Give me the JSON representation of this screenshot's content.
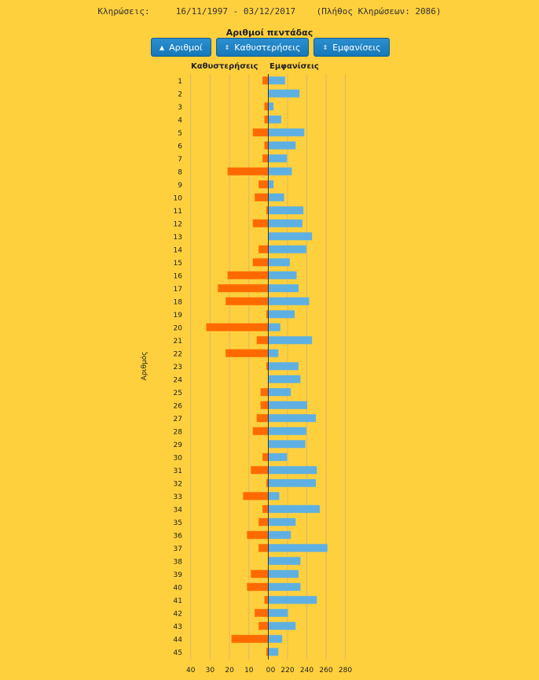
{
  "header": {
    "draws_label": "Κληρώσεις:",
    "date_range": "16/11/1997 - 03/12/2017",
    "draw_count": "(Πλήθος Κληρώσεων: 2086)"
  },
  "chart_title": "Αριθμοί πεντάδας",
  "buttons": [
    {
      "label": "Αριθμοί",
      "icon": "caret-up-icon"
    },
    {
      "label": "Καθυστερήσεις",
      "icon": "sort-icon"
    },
    {
      "label": "Εμφανίσεις",
      "icon": "sort-icon"
    }
  ],
  "colors": {
    "delays": "#FF6A00",
    "appearances": "#5EB0E2",
    "background": "#FFD03D",
    "grid": "#D8B86A"
  },
  "chart_data": {
    "type": "bar",
    "orientation": "horizontal",
    "ylabel": "Αριθμός",
    "left_axis_label": "Καθυστερήσεις",
    "right_axis_label": "Εμφανίσεις",
    "left_ticks": [
      "40",
      "30",
      "20",
      "10",
      "0"
    ],
    "right_ticks": [
      "0",
      "220",
      "240",
      "260",
      "280"
    ],
    "categories": [
      "1",
      "2",
      "3",
      "4",
      "5",
      "6",
      "7",
      "8",
      "9",
      "10",
      "11",
      "12",
      "13",
      "14",
      "15",
      "16",
      "17",
      "18",
      "19",
      "20",
      "21",
      "22",
      "23",
      "24",
      "25",
      "26",
      "27",
      "28",
      "29",
      "30",
      "31",
      "32",
      "33",
      "34",
      "35",
      "36",
      "37",
      "38",
      "39",
      "40",
      "41",
      "42",
      "43",
      "44",
      "45"
    ],
    "series": [
      {
        "name": "Καθυστερήσεις",
        "values": [
          3,
          0,
          2,
          2,
          8,
          2,
          3,
          21,
          5,
          7,
          1,
          8,
          0,
          5,
          8,
          21,
          26,
          22,
          1,
          32,
          6,
          22,
          1,
          0,
          4,
          4,
          6,
          8,
          0,
          3,
          9,
          1,
          13,
          3,
          5,
          11,
          5,
          0,
          9,
          11,
          2,
          7,
          5,
          19,
          1
        ]
      },
      {
        "name": "Εμφανίσεις",
        "values": [
          217,
          232,
          205,
          213,
          237,
          228,
          219,
          224,
          205,
          216,
          236,
          235,
          245,
          239,
          222,
          229,
          231,
          242,
          227,
          212,
          245,
          210,
          231,
          233,
          223,
          240,
          249,
          239,
          238,
          219,
          250,
          249,
          211,
          253,
          228,
          223,
          261,
          233,
          231,
          233,
          250,
          220,
          228,
          214,
          210
        ]
      }
    ]
  }
}
